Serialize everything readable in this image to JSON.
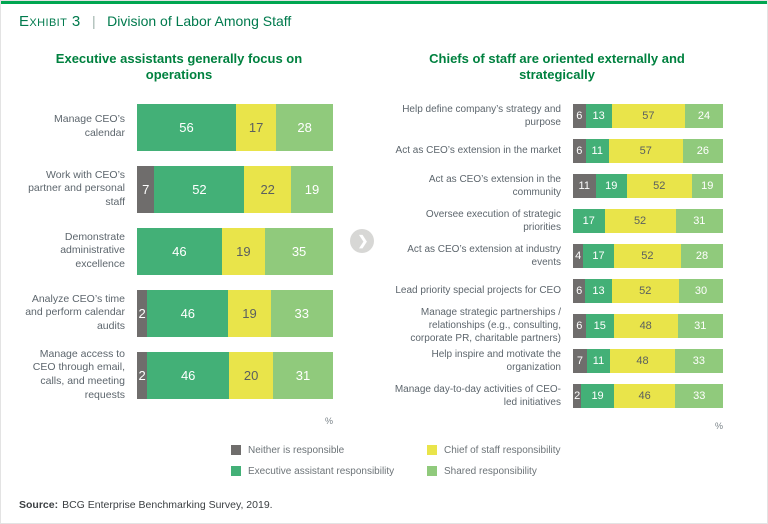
{
  "page": {
    "exhibit_label": "Exhibit 3",
    "separator": "|",
    "exhibit_title": "Division of Labor Among Staff",
    "source_label": "Source:",
    "source_text": "BCG Enterprise Benchmarking Survey, 2019."
  },
  "icons": {
    "chevron_right": "❯"
  },
  "colors": {
    "accent_top": "#00A651",
    "title_green": "#007A4D",
    "heading_green": "#00813F",
    "label_gray": "#5D666D",
    "neither": "#6F6D6C",
    "ea": "#43B077",
    "cos": "#E9E44A",
    "shared": "#90CA7C"
  },
  "legend": [
    {
      "key": "neither",
      "label": "Neither is responsible"
    },
    {
      "key": "cos",
      "label": "Chief of staff responsibility"
    },
    {
      "key": "ea",
      "label": "Executive assistant responsibility"
    },
    {
      "key": "shared",
      "label": "Shared responsibility"
    }
  ],
  "chart_data": [
    {
      "type": "bar",
      "orientation": "horizontal",
      "stacked": true,
      "unit": "%",
      "xlim": [
        0,
        100
      ],
      "title": "Executive assistants generally focus on operations",
      "series_keys": [
        "neither",
        "ea",
        "cos",
        "shared"
      ],
      "rows": [
        {
          "label": "Manage CEO’s calendar",
          "values": {
            "neither": 0,
            "ea": 56,
            "cos": 17,
            "shared": 28
          }
        },
        {
          "label": "Work with CEO’s partner and personal staff",
          "values": {
            "neither": 7,
            "ea": 52,
            "cos": 22,
            "shared": 19
          }
        },
        {
          "label": "Demonstrate administrative excellence",
          "values": {
            "neither": 0,
            "ea": 46,
            "cos": 19,
            "shared": 35
          }
        },
        {
          "label": "Analyze CEO’s time and perform calendar audits",
          "values": {
            "neither": 2,
            "ea": 46,
            "cos": 19,
            "shared": 33
          }
        },
        {
          "label": "Manage access to CEO through email, calls, and meeting requests",
          "values": {
            "neither": 2,
            "ea": 46,
            "cos": 20,
            "shared": 31
          }
        }
      ]
    },
    {
      "type": "bar",
      "orientation": "horizontal",
      "stacked": true,
      "unit": "%",
      "xlim": [
        0,
        100
      ],
      "title": "Chiefs of staff are oriented externally and strategically",
      "series_keys": [
        "neither",
        "ea",
        "cos",
        "shared"
      ],
      "rows": [
        {
          "label": "Help define company’s strategy and purpose",
          "values": {
            "neither": 6,
            "ea": 13,
            "cos": 57,
            "shared": 24
          }
        },
        {
          "label": "Act as CEO’s extension in the market",
          "values": {
            "neither": 6,
            "ea": 11,
            "cos": 57,
            "shared": 26
          }
        },
        {
          "label": "Act as CEO’s extension in the community",
          "values": {
            "neither": 11,
            "ea": 19,
            "cos": 52,
            "shared": 19
          }
        },
        {
          "label": "Oversee execution of strategic priorities",
          "values": {
            "neither": 0,
            "ea": 17,
            "cos": 52,
            "shared": 31
          }
        },
        {
          "label": "Act as CEO’s extension at industry events",
          "values": {
            "neither": 4,
            "ea": 17,
            "cos": 52,
            "shared": 28
          }
        },
        {
          "label": "Lead priority special projects for CEO",
          "values": {
            "neither": 6,
            "ea": 13,
            "cos": 52,
            "shared": 30
          }
        },
        {
          "label": "Manage strategic partnerships / relationships (e.g., consulting, corporate PR, charitable partners)",
          "values": {
            "neither": 6,
            "ea": 15,
            "cos": 48,
            "shared": 31
          }
        },
        {
          "label": "Help inspire and motivate the organization",
          "values": {
            "neither": 7,
            "ea": 11,
            "cos": 48,
            "shared": 33
          }
        },
        {
          "label": "Manage day-to-day activities of CEO-led initiatives",
          "values": {
            "neither": 2,
            "ea": 19,
            "cos": 46,
            "shared": 33
          }
        }
      ]
    }
  ]
}
